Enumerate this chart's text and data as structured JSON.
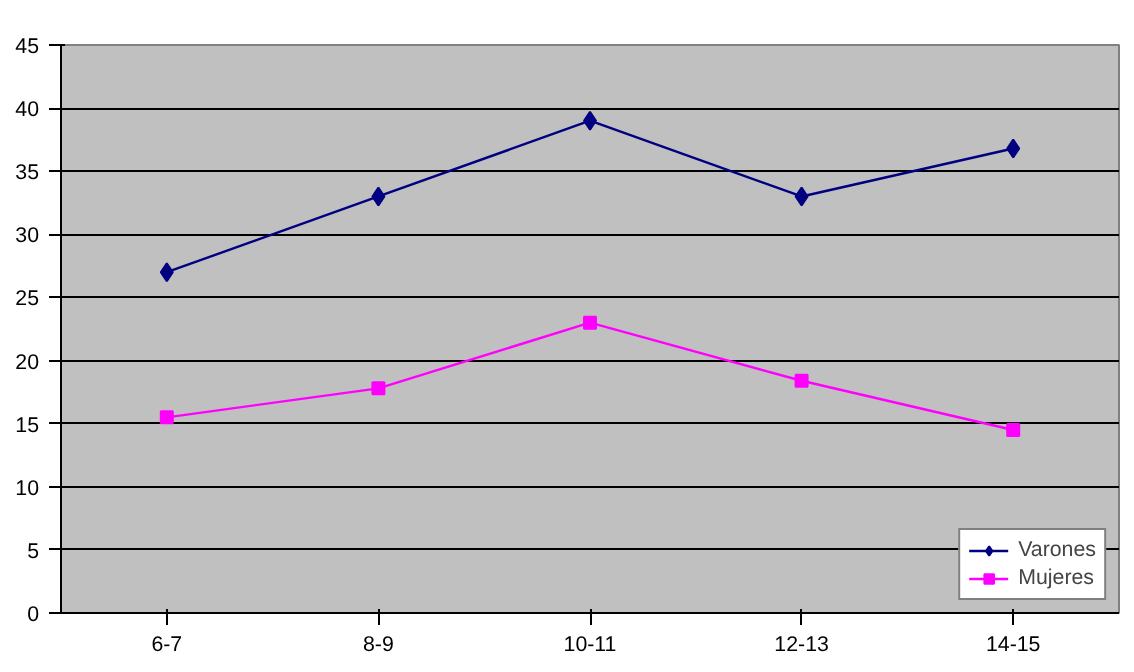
{
  "chart_data": {
    "type": "line",
    "categories": [
      "6-7",
      "8-9",
      "10-11",
      "12-13",
      "14-15"
    ],
    "series": [
      {
        "name": "Varones",
        "color": "#000080",
        "marker": "diamond",
        "values": [
          27,
          33,
          39,
          33,
          36.8
        ]
      },
      {
        "name": "Mujeres",
        "color": "#ff00ff",
        "marker": "square",
        "values": [
          15.5,
          17.8,
          23,
          18.4,
          14.5
        ]
      }
    ],
    "ylim": [
      0,
      45
    ],
    "yticks": [
      0,
      5,
      10,
      15,
      20,
      25,
      30,
      35,
      40,
      45
    ],
    "grid": "y",
    "legend": "bottom right"
  }
}
